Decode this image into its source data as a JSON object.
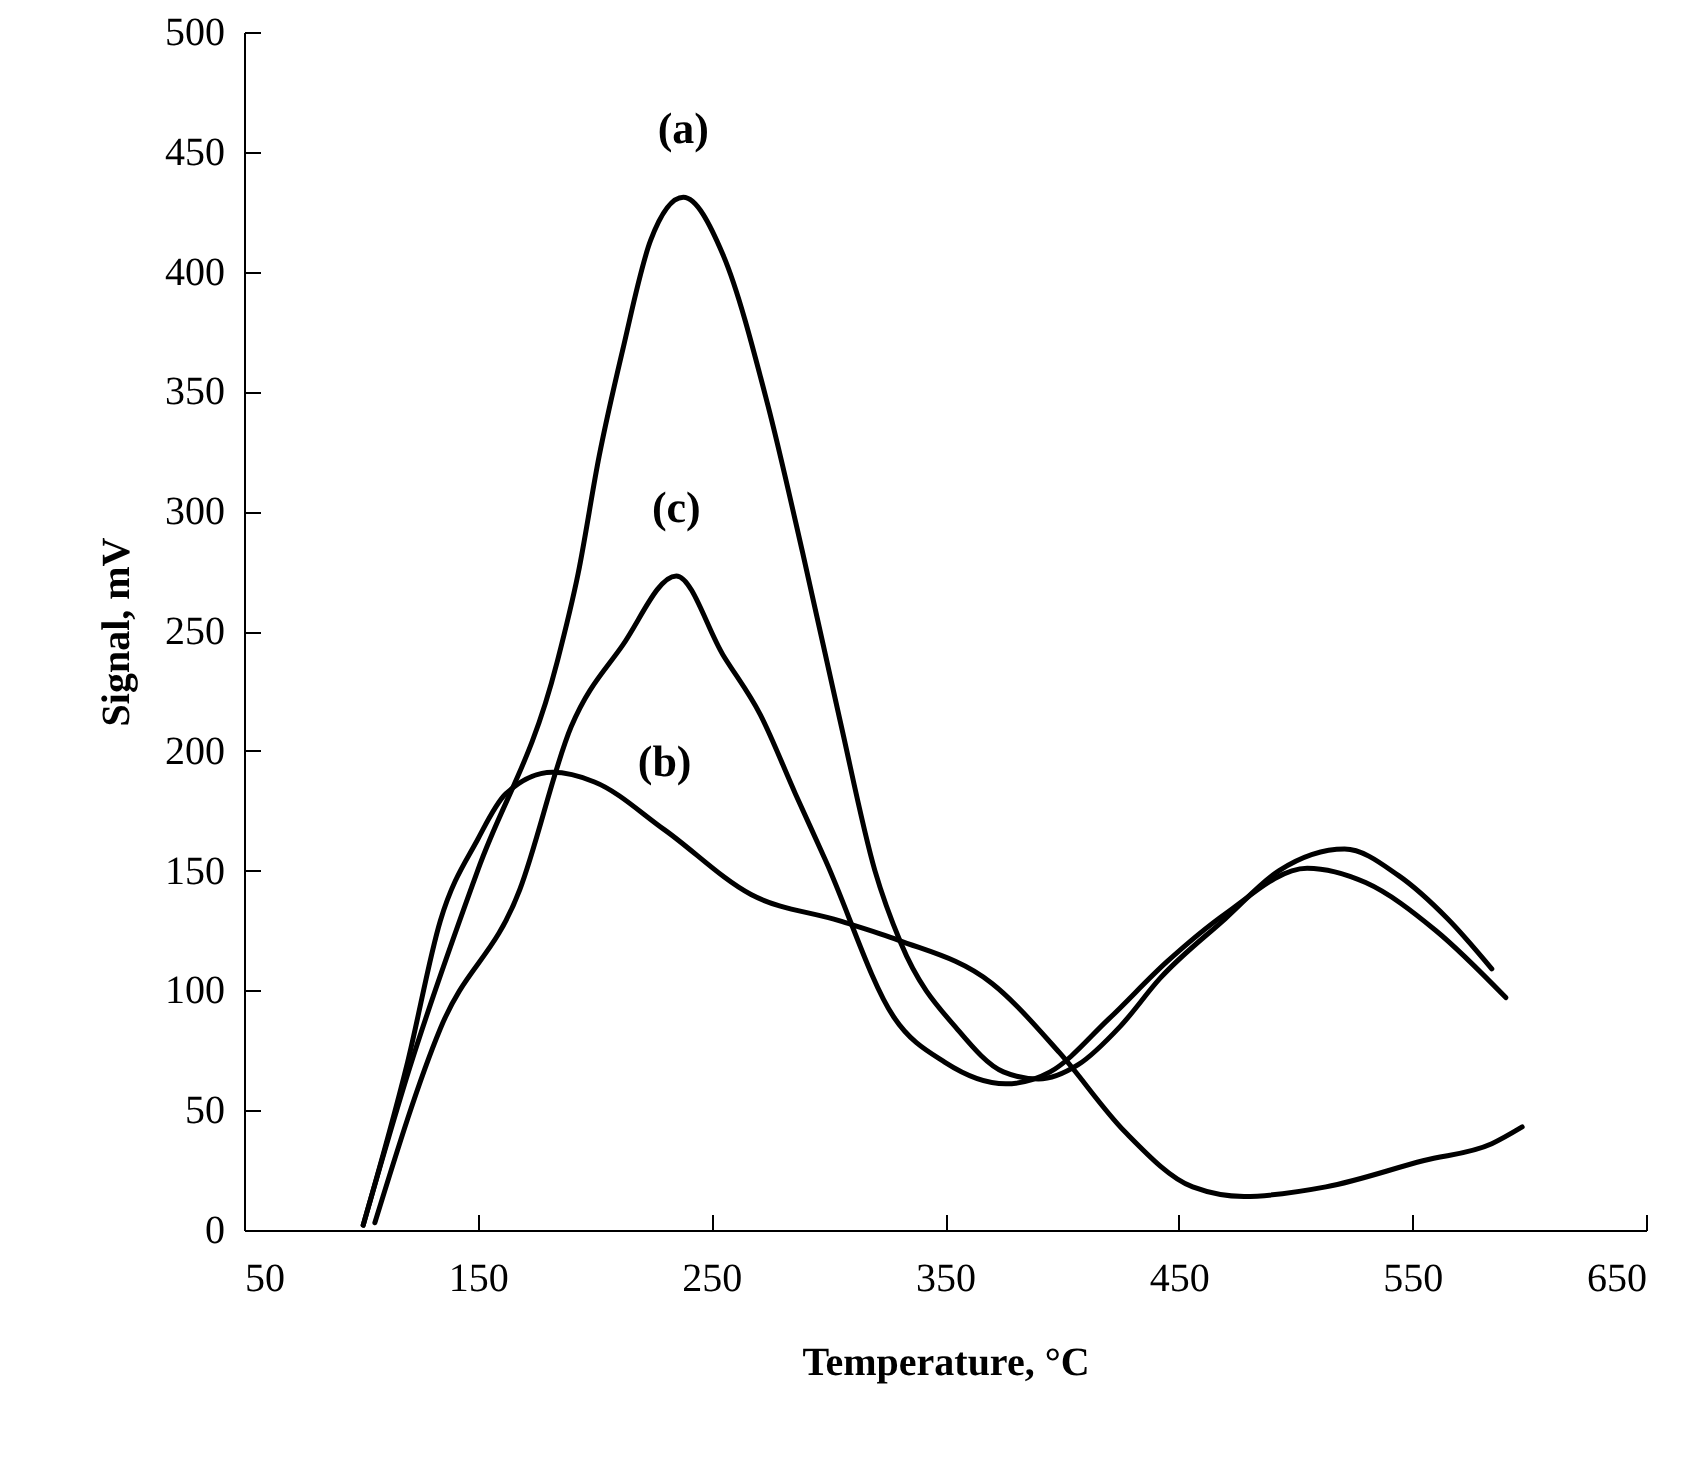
{
  "chart_data": {
    "type": "line",
    "xlabel": "Temperature, °C",
    "ylabel": "Signal, mV",
    "xlim": [
      50,
      650
    ],
    "xticks": [
      50,
      150,
      250,
      350,
      450,
      550,
      650
    ],
    "ylim": [
      0,
      500
    ],
    "yticks": [
      0,
      50,
      100,
      150,
      200,
      250,
      300,
      350,
      400,
      450,
      500
    ],
    "line_style": "solid",
    "series": [
      {
        "name": "(a)",
        "color": "#000000",
        "x": [
          101,
          121,
          150,
          184,
          193,
          202,
          212,
          224,
          238,
          255,
          274,
          289,
          305,
          320,
          331,
          356,
          375,
          390,
          407,
          425,
          442,
          470,
          493,
          521,
          544,
          565,
          584
        ],
        "values": [
          2,
          68,
          150,
          237,
          274,
          323,
          367,
          413,
          431,
          407,
          345,
          283,
          213,
          150,
          120,
          83,
          66,
          63,
          69,
          85,
          105,
          130,
          150,
          159,
          148,
          130,
          109
        ]
      },
      {
        "name": "(b)",
        "color": "#000000",
        "x": [
          101,
          120,
          134,
          150,
          162,
          182,
          200,
          230,
          267,
          305,
          330,
          370,
          399,
          427,
          456,
          478,
          513,
          555,
          584,
          597
        ],
        "values": [
          2,
          70,
          129,
          163,
          182,
          191,
          187,
          167,
          140,
          129,
          121,
          103,
          74,
          41,
          18,
          14,
          18,
          29,
          36,
          43
        ]
      },
      {
        "name": "(c)",
        "color": "#000000",
        "x": [
          106,
          134,
          168,
          190,
          212,
          235,
          255,
          271,
          286,
          299,
          328,
          350,
          376,
          395,
          420,
          445,
          470,
          505,
          530,
          560,
          590
        ],
        "values": [
          3,
          84,
          142,
          210,
          244,
          273,
          240,
          215,
          182,
          154,
          89,
          70,
          61,
          66,
          88,
          112,
          132,
          151,
          145,
          125,
          97
        ]
      }
    ]
  }
}
